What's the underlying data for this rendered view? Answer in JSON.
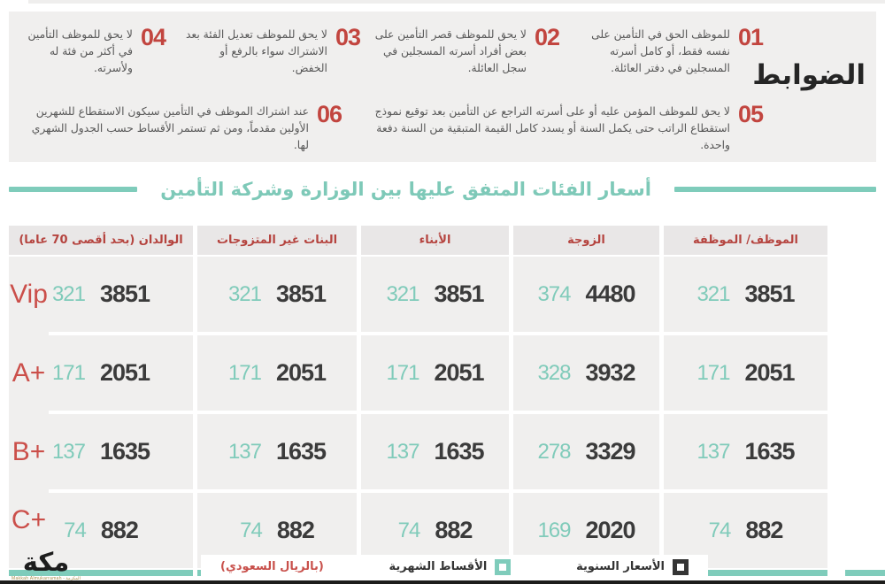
{
  "controls": {
    "title": "الضوابط",
    "items": [
      {
        "num": "01",
        "text": "للموظف الحق في التأمين على نفسه فقط، أو كامل أسرته المسجلين في دفتر العائلة."
      },
      {
        "num": "02",
        "text": "لا يحق للموظف قصر التأمين على بعض أفراد أسرته المسجلين في سجل العائلة."
      },
      {
        "num": "03",
        "text": "لا يحق للموظف تعديل الفئة بعد الاشتراك سواء بالرفع أو الخفض."
      },
      {
        "num": "04",
        "text": "لا يحق للموظف التأمين في أكثر من فئة له ولأسرته."
      },
      {
        "num": "05",
        "text": "لا يحق للموظف المؤمن عليه أو على أسرته التراجع عن التأمين بعد توقيع نموذج استقطاع الراتب حتى يكمل السنة أو يسدد كامل القيمة المتبقية من السنة دفعة واحدة."
      },
      {
        "num": "06",
        "text": "عند اشتراك الموظف في التأمين سيكون الاستقطاع للشهرين الأولين مقدماً، ومن ثم تستمر الأقساط حسب الجدول الشهري لها."
      }
    ]
  },
  "section_title": "أسعار الفئات المتفق عليها بين الوزارة وشركة التأمين",
  "table": {
    "columns": [
      "الموظف/ الموظفة",
      "الزوجة",
      "الأبناء",
      "البنات غير المتزوجات",
      "الوالدان (بحد أقصى 70 عاما)"
    ],
    "rows": [
      {
        "label": "Vip",
        "values": [
          {
            "monthly": 321,
            "annual": 3851
          },
          {
            "monthly": 374,
            "annual": 4480
          },
          {
            "monthly": 321,
            "annual": 3851
          },
          {
            "monthly": 321,
            "annual": 3851
          },
          {
            "monthly": 321,
            "annual": 3851
          }
        ]
      },
      {
        "label": "+A",
        "values": [
          {
            "monthly": 171,
            "annual": 2051
          },
          {
            "monthly": 328,
            "annual": 3932
          },
          {
            "monthly": 171,
            "annual": 2051
          },
          {
            "monthly": 171,
            "annual": 2051
          },
          {
            "monthly": 171,
            "annual": 2051
          }
        ]
      },
      {
        "label": "+B",
        "values": [
          {
            "monthly": 137,
            "annual": 1635
          },
          {
            "monthly": 278,
            "annual": 3329
          },
          {
            "monthly": 137,
            "annual": 1635
          },
          {
            "monthly": 137,
            "annual": 1635
          },
          {
            "monthly": 137,
            "annual": 1635
          }
        ]
      },
      {
        "label": "+C",
        "values": [
          {
            "monthly": 74,
            "annual": 882
          },
          {
            "monthly": 169,
            "annual": 2020
          },
          {
            "monthly": 74,
            "annual": 882
          },
          {
            "monthly": 74,
            "annual": 882
          },
          {
            "monthly": 74,
            "annual": 882
          }
        ]
      }
    ]
  },
  "legend": {
    "annual_label": "الأسعار السنوية",
    "monthly_label": "الأقساط الشهرية",
    "currency_note": "(بالريال السعودي)"
  },
  "logo": {
    "name": "مكة",
    "caption": "المكرمة - Makkah Almukarramah"
  },
  "colors": {
    "teal": "#7fccbb",
    "red": "#c2453f",
    "dark": "#3b3b3b",
    "panel_gray": "#f0efee",
    "header_gray": "#e9e7e7"
  }
}
